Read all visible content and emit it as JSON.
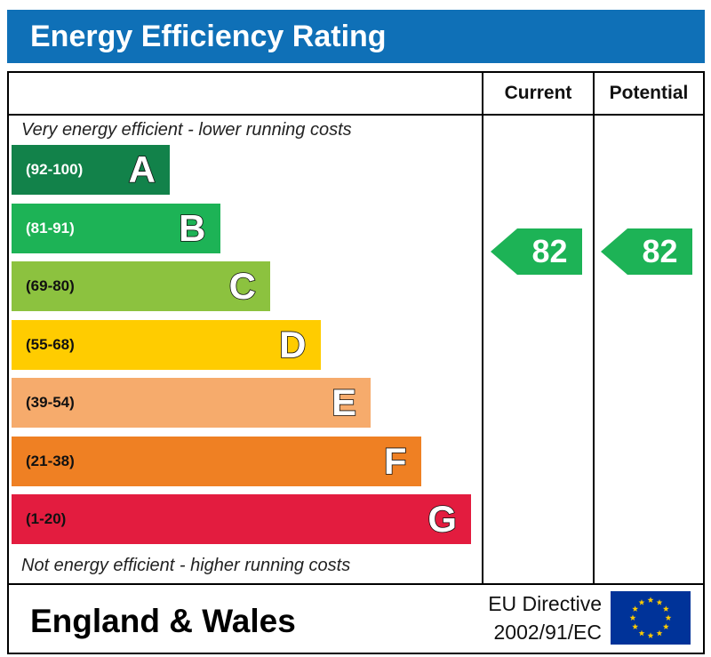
{
  "title": "Energy Efficiency Rating",
  "columns": {
    "current": "Current",
    "potential": "Potential"
  },
  "top_note": "Very energy efficient - lower running costs",
  "bottom_note": "Not energy efficient - higher running costs",
  "footer": {
    "region": "England & Wales",
    "directive_line1": "EU Directive",
    "directive_line2": "2002/91/EC",
    "flag_icon": "eu-flag-icon"
  },
  "colors": {
    "header": "#0f70b7",
    "A": "#12824a",
    "B": "#1db356",
    "C": "#8cc23f",
    "D": "#ffcc00",
    "E": "#f6ab6c",
    "F": "#ef8023",
    "G": "#e31c3f",
    "eu_blue": "#003399",
    "eu_gold": "#ffcc00"
  },
  "chart_data": {
    "type": "bar",
    "title": "Energy Efficiency Rating",
    "categories": [
      "A",
      "B",
      "C",
      "D",
      "E",
      "F",
      "G"
    ],
    "bands": [
      {
        "letter": "A",
        "range": "(92-100)",
        "min": 92,
        "max": 100,
        "color": "#12824a"
      },
      {
        "letter": "B",
        "range": "(81-91)",
        "min": 81,
        "max": 91,
        "color": "#1db356"
      },
      {
        "letter": "C",
        "range": "(69-80)",
        "min": 69,
        "max": 80,
        "color": "#8cc23f"
      },
      {
        "letter": "D",
        "range": "(55-68)",
        "min": 55,
        "max": 68,
        "color": "#ffcc00"
      },
      {
        "letter": "E",
        "range": "(39-54)",
        "min": 39,
        "max": 54,
        "color": "#f6ab6c"
      },
      {
        "letter": "F",
        "range": "(21-38)",
        "min": 21,
        "max": 38,
        "color": "#ef8023"
      },
      {
        "letter": "G",
        "range": "(1-20)",
        "min": 1,
        "max": 20,
        "color": "#e31c3f"
      }
    ],
    "current": {
      "label": "Current",
      "value": 82,
      "band": "B"
    },
    "potential": {
      "label": "Potential",
      "value": 82,
      "band": "B"
    }
  }
}
